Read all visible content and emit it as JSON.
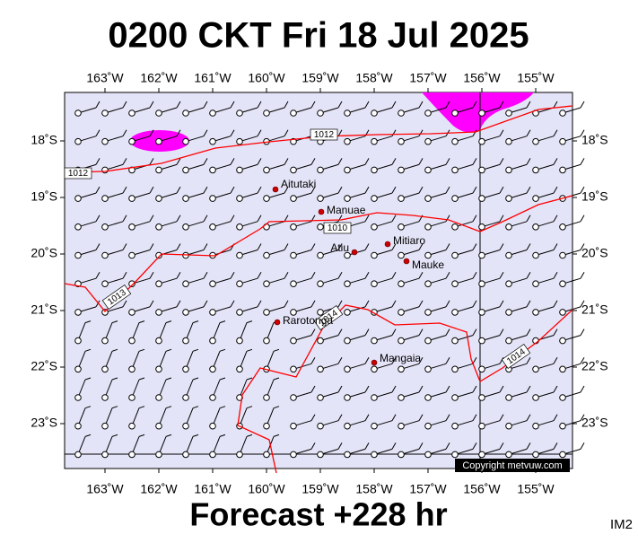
{
  "title": "0200 CKT Fri 18 Jul 2025",
  "footer": "Forecast +228 hr",
  "corner_label": "IM2",
  "copyright": "Copyright metvuw.com",
  "map": {
    "lon_labels": [
      "163˚W",
      "162˚W",
      "161˚W",
      "160˚W",
      "159˚W",
      "158˚W",
      "157˚W",
      "156˚W",
      "155˚W"
    ],
    "lat_labels": [
      "18˚S",
      "19˚S",
      "20˚S",
      "21˚S",
      "22˚S",
      "23˚S"
    ],
    "places": [
      "Aitutaki",
      "Manuae",
      "Atiu",
      "Mitiaro",
      "Mauke",
      "Rarotonga",
      "Mangaia"
    ],
    "isobar_labels": [
      "1012",
      "1012",
      "1010",
      "1013",
      "1014",
      "1014"
    ]
  }
}
